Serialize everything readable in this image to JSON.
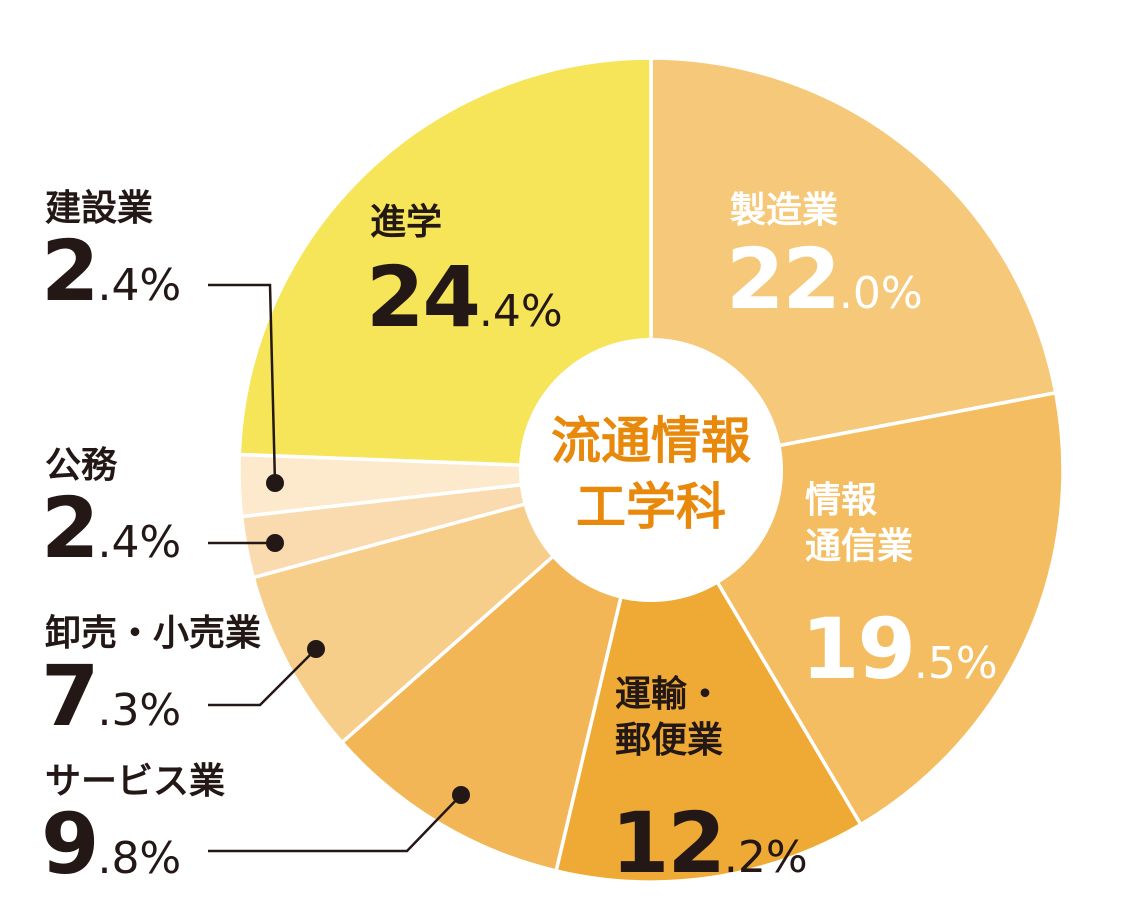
{
  "chart_data": {
    "type": "pie",
    "center_label": [
      "流通情報",
      "工学科"
    ],
    "slices": [
      {
        "label": [
          "製造業"
        ],
        "int": "22",
        "dec": ".0%",
        "value": 22.0,
        "color": "#f6c97a"
      },
      {
        "label": [
          "情報",
          "通信業"
        ],
        "int": "19",
        "dec": ".5%",
        "value": 19.5,
        "color": "#f4bd61"
      },
      {
        "label": [
          "運輸・",
          "郵便業"
        ],
        "int": "12",
        "dec": ".2%",
        "value": 12.2,
        "color": "#efa935"
      },
      {
        "label": [
          "サービス業"
        ],
        "int": "9",
        "dec": ".8%",
        "value": 9.8,
        "color": "#f3b657"
      },
      {
        "label": [
          "卸売・小売業"
        ],
        "int": "7",
        "dec": ".3%",
        "value": 7.3,
        "color": "#f7cd8a"
      },
      {
        "label": [
          "公務"
        ],
        "int": "2",
        "dec": ".4%",
        "value": 2.4,
        "color": "#fadbb0"
      },
      {
        "label": [
          "建設業"
        ],
        "int": "2",
        "dec": ".4%",
        "value": 2.4,
        "color": "#fde9cc"
      },
      {
        "label": [
          "進学"
        ],
        "int": "24",
        "dec": ".4%",
        "value": 24.4,
        "color": "#f6e559"
      }
    ],
    "center_color": "#e8890c"
  }
}
